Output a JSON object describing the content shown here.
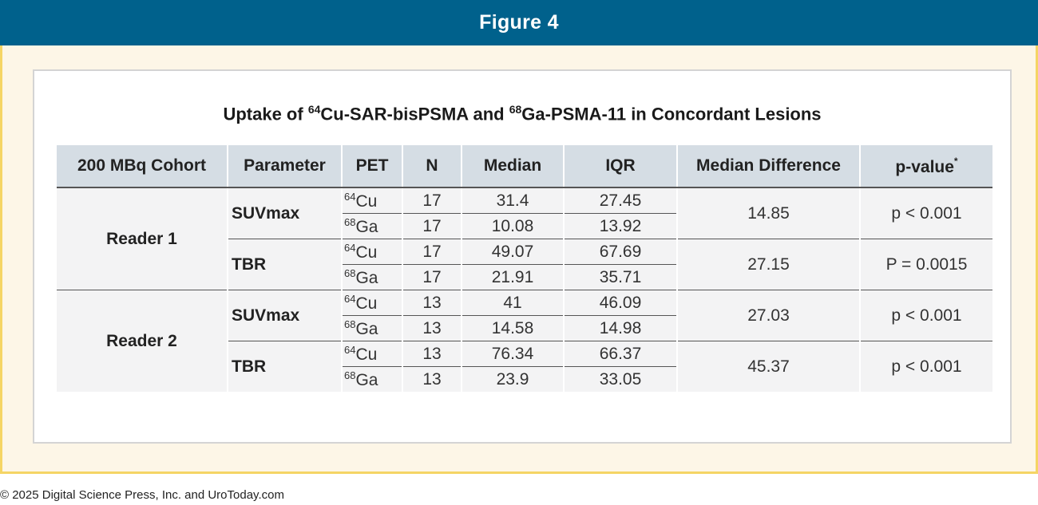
{
  "banner": {
    "title": "Figure 4"
  },
  "table": {
    "title_prefix": "Uptake of ",
    "title_sup1": "64",
    "title_mid": "Cu-SAR-bisPSMA and ",
    "title_sup2": "68",
    "title_suffix": "Ga-PSMA-11 in Concordant Lesions",
    "headers": {
      "cohort": "200 MBq Cohort",
      "parameter": "Parameter",
      "pet": "PET",
      "n": "N",
      "median": "Median",
      "iqr": "IQR",
      "median_difference": "Median Difference",
      "p_value": "p-value",
      "p_value_mark": "*"
    },
    "readers": [
      {
        "label": "Reader 1",
        "params": [
          {
            "name": "SUVmax",
            "rows": [
              {
                "pet_mass": "64",
                "pet_el": "Cu",
                "n": "17",
                "median": "31.4",
                "iqr": "27.45"
              },
              {
                "pet_mass": "68",
                "pet_el": "Ga",
                "n": "17",
                "median": "10.08",
                "iqr": "13.92"
              }
            ],
            "median_difference": "14.85",
            "p_value": "p < 0.001"
          },
          {
            "name": "TBR",
            "rows": [
              {
                "pet_mass": "64",
                "pet_el": "Cu",
                "n": "17",
                "median": "49.07",
                "iqr": "67.69"
              },
              {
                "pet_mass": "68",
                "pet_el": "Ga",
                "n": "17",
                "median": "21.91",
                "iqr": "35.71"
              }
            ],
            "median_difference": "27.15",
            "p_value": "P = 0.0015"
          }
        ]
      },
      {
        "label": "Reader 2",
        "params": [
          {
            "name": "SUVmax",
            "rows": [
              {
                "pet_mass": "64",
                "pet_el": "Cu",
                "n": "13",
                "median": "41",
                "iqr": "46.09"
              },
              {
                "pet_mass": "68",
                "pet_el": "Ga",
                "n": "13",
                "median": "14.58",
                "iqr": "14.98"
              }
            ],
            "median_difference": "27.03",
            "p_value": "p < 0.001"
          },
          {
            "name": "TBR",
            "rows": [
              {
                "pet_mass": "64",
                "pet_el": "Cu",
                "n": "13",
                "median": "76.34",
                "iqr": "66.37"
              },
              {
                "pet_mass": "68",
                "pet_el": "Ga",
                "n": "13",
                "median": "23.9",
                "iqr": "33.05"
              }
            ],
            "median_difference": "45.37",
            "p_value": "p < 0.001"
          }
        ]
      }
    ]
  },
  "footer": {
    "copyright": "© 2025 Digital Science Press, Inc. and UroToday.com"
  },
  "colors": {
    "banner": "#00618c",
    "frame_border": "#f5d565",
    "frame_bg": "#fdf6e7",
    "header_bg": "#d5dde4",
    "cell_bg": "#f3f3f4"
  }
}
